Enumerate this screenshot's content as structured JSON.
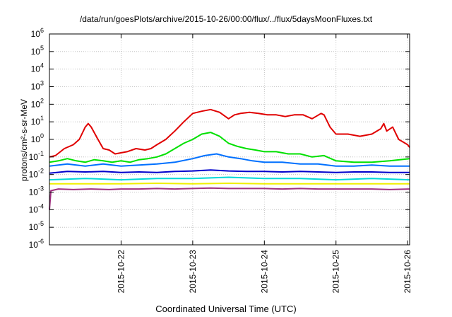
{
  "chart_data": {
    "type": "line",
    "title": "/data/run/goesPlots/archive/2015-10-26/00:00/flux/../flux/5daysMoonFluxes.txt",
    "xlabel": "Coordinated Universal Time (UTC)",
    "ylabel": "protons/cm²-s-sr-MeV",
    "yscale": "log",
    "ylim": [
      1e-06,
      1000000.0
    ],
    "y_ticks": [
      {
        "value": 1e-06,
        "base": "10",
        "exp": "-6"
      },
      {
        "value": 1e-05,
        "base": "10",
        "exp": "-5"
      },
      {
        "value": 0.0001,
        "base": "10",
        "exp": "-4"
      },
      {
        "value": 0.001,
        "base": "10",
        "exp": "-3"
      },
      {
        "value": 0.01,
        "base": "10",
        "exp": "-2"
      },
      {
        "value": 0.1,
        "base": "10",
        "exp": "-1"
      },
      {
        "value": 1.0,
        "base": "10",
        "exp": "0"
      },
      {
        "value": 10.0,
        "base": "10",
        "exp": "1"
      },
      {
        "value": 100.0,
        "base": "10",
        "exp": "2"
      },
      {
        "value": 1000.0,
        "base": "10",
        "exp": "3"
      },
      {
        "value": 10000.0,
        "base": "10",
        "exp": "4"
      },
      {
        "value": 100000.0,
        "base": "10",
        "exp": "5"
      },
      {
        "value": 1000000.0,
        "base": "10",
        "exp": "6"
      }
    ],
    "xlim": [
      "2015-10-21T00:00",
      "2015-10-26T00:40"
    ],
    "x_ticks": [
      "2015-10-22",
      "2015-10-23",
      "2015-10-24",
      "2015-10-25",
      "2015-10-26"
    ],
    "grid": true,
    "legend": "none",
    "series": [
      {
        "color": "#e00000",
        "points": [
          [
            "2015-10-21T00:00",
            0.1
          ],
          [
            "2015-10-21T02:00",
            0.12
          ],
          [
            "2015-10-21T05:00",
            0.3
          ],
          [
            "2015-10-21T08:00",
            0.5
          ],
          [
            "2015-10-21T10:00",
            1.0
          ],
          [
            "2015-10-21T12:00",
            5.0
          ],
          [
            "2015-10-21T13:00",
            8.0
          ],
          [
            "2015-10-21T14:00",
            5.0
          ],
          [
            "2015-10-21T16:00",
            1.2
          ],
          [
            "2015-10-21T18:00",
            0.3
          ],
          [
            "2015-10-21T20:00",
            0.25
          ],
          [
            "2015-10-21T22:00",
            0.15
          ],
          [
            "2015-10-22T02:00",
            0.2
          ],
          [
            "2015-10-22T05:00",
            0.3
          ],
          [
            "2015-10-22T08:00",
            0.25
          ],
          [
            "2015-10-22T10:00",
            0.3
          ],
          [
            "2015-10-22T12:00",
            0.5
          ],
          [
            "2015-10-22T15:00",
            1.0
          ],
          [
            "2015-10-22T18:00",
            3.0
          ],
          [
            "2015-10-22T21:00",
            10
          ],
          [
            "2015-10-23T00:00",
            30
          ],
          [
            "2015-10-23T03:00",
            40
          ],
          [
            "2015-10-23T06:00",
            50
          ],
          [
            "2015-10-23T09:00",
            35
          ],
          [
            "2015-10-23T12:00",
            15
          ],
          [
            "2015-10-23T14:00",
            25
          ],
          [
            "2015-10-23T16:00",
            30
          ],
          [
            "2015-10-23T19:00",
            35
          ],
          [
            "2015-10-23T22:00",
            30
          ],
          [
            "2015-10-24T01:00",
            25
          ],
          [
            "2015-10-24T04:00",
            25
          ],
          [
            "2015-10-24T07:00",
            20
          ],
          [
            "2015-10-24T10:00",
            25
          ],
          [
            "2015-10-24T13:00",
            25
          ],
          [
            "2015-10-24T16:00",
            15
          ],
          [
            "2015-10-24T19:00",
            30
          ],
          [
            "2015-10-24T20:00",
            25
          ],
          [
            "2015-10-24T22:00",
            5.0
          ],
          [
            "2015-10-25T00:00",
            2.0
          ],
          [
            "2015-10-25T04:00",
            2.0
          ],
          [
            "2015-10-25T08:00",
            1.5
          ],
          [
            "2015-10-25T12:00",
            2.0
          ],
          [
            "2015-10-25T15:00",
            4.0
          ],
          [
            "2015-10-25T16:00",
            8.0
          ],
          [
            "2015-10-25T17:00",
            3.0
          ],
          [
            "2015-10-25T19:00",
            5.0
          ],
          [
            "2015-10-25T21:00",
            1.0
          ],
          [
            "2015-10-26T00:00",
            0.5
          ],
          [
            "2015-10-26T00:40",
            0.35
          ]
        ]
      },
      {
        "color": "#00e000",
        "points": [
          [
            "2015-10-21T00:00",
            0.05
          ],
          [
            "2015-10-21T03:00",
            0.06
          ],
          [
            "2015-10-21T06:00",
            0.08
          ],
          [
            "2015-10-21T09:00",
            0.06
          ],
          [
            "2015-10-21T12:00",
            0.05
          ],
          [
            "2015-10-21T15:00",
            0.07
          ],
          [
            "2015-10-21T18:00",
            0.06
          ],
          [
            "2015-10-21T21:00",
            0.05
          ],
          [
            "2015-10-22T00:00",
            0.06
          ],
          [
            "2015-10-22T03:00",
            0.05
          ],
          [
            "2015-10-22T06:00",
            0.07
          ],
          [
            "2015-10-22T09:00",
            0.08
          ],
          [
            "2015-10-22T12:00",
            0.1
          ],
          [
            "2015-10-22T15:00",
            0.15
          ],
          [
            "2015-10-22T18:00",
            0.3
          ],
          [
            "2015-10-22T21:00",
            0.6
          ],
          [
            "2015-10-23T00:00",
            1.0
          ],
          [
            "2015-10-23T03:00",
            2.0
          ],
          [
            "2015-10-23T06:00",
            2.5
          ],
          [
            "2015-10-23T09:00",
            1.5
          ],
          [
            "2015-10-23T12:00",
            0.6
          ],
          [
            "2015-10-23T15:00",
            0.4
          ],
          [
            "2015-10-23T18:00",
            0.3
          ],
          [
            "2015-10-23T21:00",
            0.25
          ],
          [
            "2015-10-24T00:00",
            0.2
          ],
          [
            "2015-10-24T04:00",
            0.2
          ],
          [
            "2015-10-24T08:00",
            0.15
          ],
          [
            "2015-10-24T12:00",
            0.15
          ],
          [
            "2015-10-24T16:00",
            0.1
          ],
          [
            "2015-10-24T20:00",
            0.12
          ],
          [
            "2015-10-25T00:00",
            0.06
          ],
          [
            "2015-10-25T06:00",
            0.05
          ],
          [
            "2015-10-25T12:00",
            0.05
          ],
          [
            "2015-10-25T18:00",
            0.06
          ],
          [
            "2015-10-26T00:40",
            0.08
          ]
        ]
      },
      {
        "color": "#0070ff",
        "points": [
          [
            "2015-10-21T00:00",
            0.03
          ],
          [
            "2015-10-21T06:00",
            0.04
          ],
          [
            "2015-10-21T12:00",
            0.03
          ],
          [
            "2015-10-21T18:00",
            0.04
          ],
          [
            "2015-10-22T00:00",
            0.03
          ],
          [
            "2015-10-22T06:00",
            0.035
          ],
          [
            "2015-10-22T12:00",
            0.04
          ],
          [
            "2015-10-22T18:00",
            0.05
          ],
          [
            "2015-10-23T00:00",
            0.08
          ],
          [
            "2015-10-23T04:00",
            0.12
          ],
          [
            "2015-10-23T08:00",
            0.15
          ],
          [
            "2015-10-23T12:00",
            0.1
          ],
          [
            "2015-10-23T16:00",
            0.08
          ],
          [
            "2015-10-23T20:00",
            0.06
          ],
          [
            "2015-10-24T00:00",
            0.05
          ],
          [
            "2015-10-24T06:00",
            0.05
          ],
          [
            "2015-10-24T12:00",
            0.04
          ],
          [
            "2015-10-24T18:00",
            0.04
          ],
          [
            "2015-10-25T00:00",
            0.03
          ],
          [
            "2015-10-25T06:00",
            0.03
          ],
          [
            "2015-10-25T12:00",
            0.035
          ],
          [
            "2015-10-25T18:00",
            0.03
          ],
          [
            "2015-10-26T00:40",
            0.03
          ]
        ]
      },
      {
        "color": "#0000cc",
        "points": [
          [
            "2015-10-21T00:00",
            0.012
          ],
          [
            "2015-10-21T06:00",
            0.015
          ],
          [
            "2015-10-21T12:00",
            0.014
          ],
          [
            "2015-10-21T18:00",
            0.015
          ],
          [
            "2015-10-22T00:00",
            0.013
          ],
          [
            "2015-10-22T06:00",
            0.014
          ],
          [
            "2015-10-22T12:00",
            0.013
          ],
          [
            "2015-10-22T18:00",
            0.015
          ],
          [
            "2015-10-23T00:00",
            0.016
          ],
          [
            "2015-10-23T06:00",
            0.018
          ],
          [
            "2015-10-23T12:00",
            0.016
          ],
          [
            "2015-10-23T18:00",
            0.015
          ],
          [
            "2015-10-24T00:00",
            0.015
          ],
          [
            "2015-10-24T06:00",
            0.014
          ],
          [
            "2015-10-24T12:00",
            0.015
          ],
          [
            "2015-10-24T18:00",
            0.014
          ],
          [
            "2015-10-25T00:00",
            0.013
          ],
          [
            "2015-10-25T06:00",
            0.014
          ],
          [
            "2015-10-25T12:00",
            0.014
          ],
          [
            "2015-10-25T18:00",
            0.013
          ],
          [
            "2015-10-26T00:40",
            0.013
          ]
        ]
      },
      {
        "color": "#00d8d8",
        "points": [
          [
            "2015-10-21T00:00",
            0.005
          ],
          [
            "2015-10-21T12:00",
            0.006
          ],
          [
            "2015-10-22T00:00",
            0.005
          ],
          [
            "2015-10-22T12:00",
            0.006
          ],
          [
            "2015-10-23T00:00",
            0.006
          ],
          [
            "2015-10-23T12:00",
            0.007
          ],
          [
            "2015-10-24T00:00",
            0.006
          ],
          [
            "2015-10-24T12:00",
            0.006
          ],
          [
            "2015-10-25T00:00",
            0.005
          ],
          [
            "2015-10-25T12:00",
            0.006
          ],
          [
            "2015-10-26T00:40",
            0.005
          ]
        ]
      },
      {
        "color": "#f0f000",
        "points": [
          [
            "2015-10-21T00:00",
            0.003
          ],
          [
            "2015-10-21T12:00",
            0.003
          ],
          [
            "2015-10-22T00:00",
            0.003
          ],
          [
            "2015-10-22T12:00",
            0.0032
          ],
          [
            "2015-10-23T00:00",
            0.003
          ],
          [
            "2015-10-23T12:00",
            0.0032
          ],
          [
            "2015-10-24T00:00",
            0.003
          ],
          [
            "2015-10-24T12:00",
            0.003
          ],
          [
            "2015-10-25T00:00",
            0.003
          ],
          [
            "2015-10-25T12:00",
            0.003
          ],
          [
            "2015-10-26T00:40",
            0.003
          ]
        ]
      },
      {
        "color": "#a03080",
        "points": [
          [
            "2015-10-21T00:00",
            0.0001
          ],
          [
            "2015-10-21T00:30",
            0.0012
          ],
          [
            "2015-10-21T03:00",
            0.0015
          ],
          [
            "2015-10-21T08:00",
            0.0014
          ],
          [
            "2015-10-21T14:00",
            0.0015
          ],
          [
            "2015-10-21T20:00",
            0.0014
          ],
          [
            "2015-10-22T00:00",
            0.0015
          ],
          [
            "2015-10-22T06:00",
            0.0015
          ],
          [
            "2015-10-22T12:00",
            0.0016
          ],
          [
            "2015-10-22T18:00",
            0.0015
          ],
          [
            "2015-10-23T00:00",
            0.0016
          ],
          [
            "2015-10-23T06:00",
            0.0017
          ],
          [
            "2015-10-23T12:00",
            0.0016
          ],
          [
            "2015-10-23T18:00",
            0.0016
          ],
          [
            "2015-10-24T00:00",
            0.0016
          ],
          [
            "2015-10-24T06:00",
            0.0015
          ],
          [
            "2015-10-24T12:00",
            0.0016
          ],
          [
            "2015-10-24T18:00",
            0.0015
          ],
          [
            "2015-10-25T00:00",
            0.0015
          ],
          [
            "2015-10-25T06:00",
            0.0015
          ],
          [
            "2015-10-25T12:00",
            0.0015
          ],
          [
            "2015-10-25T18:00",
            0.0014
          ],
          [
            "2015-10-26T00:40",
            0.0015
          ]
        ]
      }
    ]
  }
}
